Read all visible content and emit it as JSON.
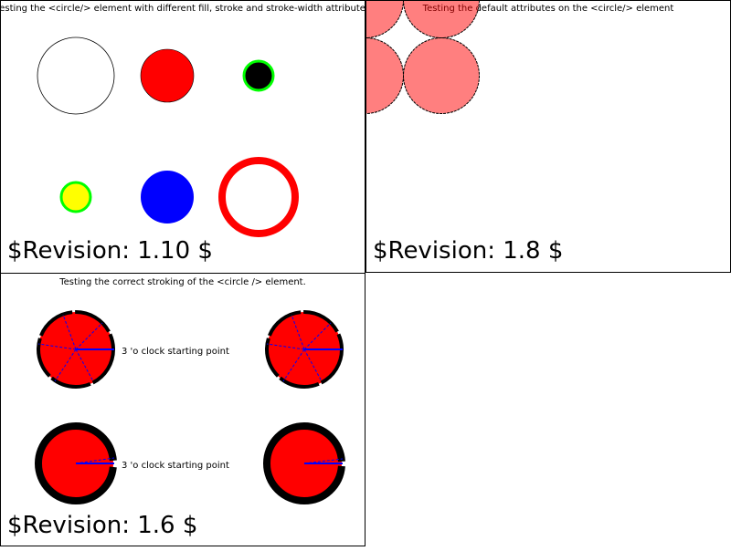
{
  "panels": [
    {
      "title": "Testing the <circle/> element with different fill, stroke and stroke-width attributes",
      "revision": "$Revision: 1.10 $"
    },
    {
      "title": "Testing the default attributes on the <circle/> element",
      "revision": "$Revision: 1.8 $"
    },
    {
      "title": "Testing the correct stroking of the <circle /> element.",
      "revision": "$Revision: 1.6 $",
      "labels": [
        "3 'o clock starting point",
        "3 'o clock starting point"
      ]
    }
  ],
  "colors": {
    "red": "#ff0000",
    "green": "#00ff00",
    "blue": "#0000ff",
    "yellow": "#ffff00",
    "black": "#000000",
    "pink": "#ff8080"
  }
}
